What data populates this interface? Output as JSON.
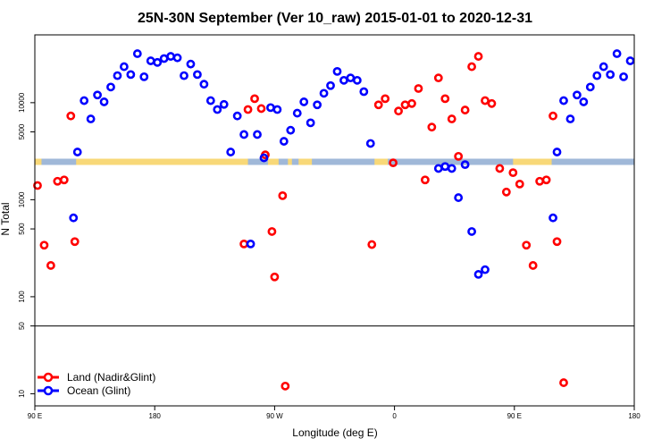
{
  "chart_data": {
    "type": "scatter",
    "title": "25N-30N September (Ver 10_raw)   2015-01-01 to 2020-12-31",
    "xlabel": "Longitude (deg E)",
    "ylabel": "N Total",
    "xlim": [
      90,
      540
    ],
    "ylim_log": [
      7.5,
      50000
    ],
    "xticks": [
      {
        "value": 90,
        "label": "90 E"
      },
      {
        "value": 180,
        "label": "180"
      },
      {
        "value": 270,
        "label": "90 W"
      },
      {
        "value": 360,
        "label": "0"
      },
      {
        "value": 450,
        "label": "90 E"
      },
      {
        "value": 540,
        "label": "180"
      }
    ],
    "yticks": [
      {
        "value": 10,
        "label": "10"
      },
      {
        "value": 50,
        "label": "50"
      },
      {
        "value": 100,
        "label": "100"
      },
      {
        "value": 500,
        "label": "500"
      },
      {
        "value": 1000,
        "label": "1000"
      },
      {
        "value": 5000,
        "label": "5000"
      },
      {
        "value": 10000,
        "label": "10000"
      }
    ],
    "divider_y": 50,
    "grid": false,
    "legend_position": "bottom-left",
    "colors": {
      "land": "#ff0000",
      "ocean": "#0000ff",
      "land_strip": "#f8d878",
      "ocean_strip": "#a0b8d8"
    },
    "surface_strip": {
      "ocean_intervals": [
        [
          95,
          121
        ],
        [
          250,
          265
        ],
        [
          273,
          280
        ],
        [
          283,
          288
        ],
        [
          298,
          345
        ],
        [
          355,
          449
        ],
        [
          478,
          540
        ]
      ]
    },
    "series": [
      {
        "name": "Land (Nadir&Glint)",
        "key": "land",
        "points": [
          [
            92,
            1400
          ],
          [
            97,
            340
          ],
          [
            102,
            210
          ],
          [
            107,
            1550
          ],
          [
            112,
            1600
          ],
          [
            117,
            7300
          ],
          [
            120,
            370
          ],
          [
            247,
            350
          ],
          [
            250,
            8500
          ],
          [
            255,
            11000
          ],
          [
            260,
            8700
          ],
          [
            263,
            2900
          ],
          [
            268,
            470
          ],
          [
            270,
            160
          ],
          [
            276,
            1100
          ],
          [
            278,
            12
          ],
          [
            343,
            345
          ],
          [
            348,
            9500
          ],
          [
            353,
            11000
          ],
          [
            359,
            2400
          ],
          [
            363,
            8200
          ],
          [
            368,
            9500
          ],
          [
            373,
            9800
          ],
          [
            378,
            14000
          ],
          [
            383,
            1600
          ],
          [
            388,
            5600
          ],
          [
            393,
            18000
          ],
          [
            398,
            11000
          ],
          [
            403,
            6800
          ],
          [
            408,
            2800
          ],
          [
            413,
            8400
          ],
          [
            418,
            23500
          ],
          [
            423,
            30000
          ],
          [
            428,
            10500
          ],
          [
            433,
            9800
          ],
          [
            439,
            2100
          ],
          [
            444,
            1200
          ],
          [
            449,
            1900
          ],
          [
            454,
            1450
          ],
          [
            459,
            340
          ],
          [
            464,
            210
          ],
          [
            469,
            1550
          ],
          [
            474,
            1600
          ],
          [
            479,
            7300
          ],
          [
            482,
            370
          ],
          [
            487,
            13
          ]
        ]
      },
      {
        "name": "Ocean (Glint)",
        "key": "ocean",
        "points": [
          [
            119,
            650
          ],
          [
            122,
            3100
          ],
          [
            127,
            10500
          ],
          [
            132,
            6800
          ],
          [
            137,
            12000
          ],
          [
            142,
            10200
          ],
          [
            147,
            14500
          ],
          [
            152,
            19000
          ],
          [
            157,
            23500
          ],
          [
            162,
            19500
          ],
          [
            167,
            32000
          ],
          [
            172,
            18500
          ],
          [
            177,
            27000
          ],
          [
            182,
            26000
          ],
          [
            187,
            28500
          ],
          [
            192,
            30000
          ],
          [
            197,
            29000
          ],
          [
            202,
            19000
          ],
          [
            207,
            25000
          ],
          [
            212,
            19500
          ],
          [
            217,
            15500
          ],
          [
            222,
            10500
          ],
          [
            227,
            8500
          ],
          [
            232,
            9600
          ],
          [
            237,
            3100
          ],
          [
            242,
            7300
          ],
          [
            247,
            4700
          ],
          [
            252,
            350
          ],
          [
            257,
            4700
          ],
          [
            262,
            2700
          ],
          [
            267,
            8900
          ],
          [
            272,
            8500
          ],
          [
            277,
            4000
          ],
          [
            282,
            5200
          ],
          [
            287,
            7800
          ],
          [
            292,
            10200
          ],
          [
            297,
            6200
          ],
          [
            302,
            9500
          ],
          [
            307,
            12500
          ],
          [
            312,
            15000
          ],
          [
            317,
            21000
          ],
          [
            322,
            17000
          ],
          [
            327,
            18000
          ],
          [
            332,
            17000
          ],
          [
            337,
            13000
          ],
          [
            342,
            3800
          ],
          [
            393,
            2100
          ],
          [
            398,
            2200
          ],
          [
            403,
            2100
          ],
          [
            408,
            1050
          ],
          [
            413,
            2300
          ],
          [
            418,
            470
          ],
          [
            423,
            170
          ],
          [
            428,
            190
          ],
          [
            479,
            650
          ],
          [
            482,
            3100
          ],
          [
            487,
            10500
          ],
          [
            492,
            6800
          ],
          [
            497,
            12000
          ],
          [
            502,
            10200
          ],
          [
            507,
            14500
          ],
          [
            512,
            19000
          ],
          [
            517,
            23500
          ],
          [
            522,
            19500
          ],
          [
            527,
            32000
          ],
          [
            532,
            18500
          ],
          [
            537,
            27000
          ]
        ]
      }
    ]
  }
}
